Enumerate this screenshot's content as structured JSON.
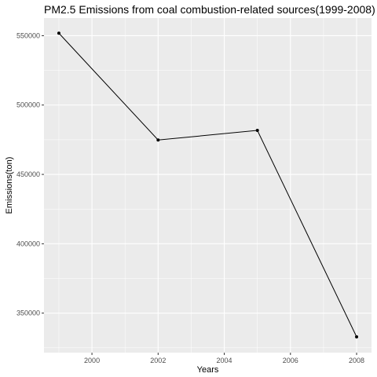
{
  "chart_data": {
    "type": "line",
    "title": "PM2.5 Emissions from coal combustion-related sources(1999-2008)",
    "xlabel": "Years",
    "ylabel": "Emissions(ton)",
    "x": [
      1999,
      2002,
      2005,
      2008
    ],
    "series": [
      {
        "values": [
          551800,
          474800,
          481700,
          332900
        ]
      }
    ],
    "xticks": [
      2000,
      2002,
      2004,
      2006,
      2008
    ],
    "yticks": [
      350000,
      400000,
      450000,
      500000,
      550000
    ],
    "xtick_labels": [
      "2000",
      "2002",
      "2004",
      "2006",
      "2008"
    ],
    "ytick_labels": [
      "350000",
      "400000",
      "450000",
      "500000",
      "550000"
    ],
    "xlim": [
      1998.55,
      2008.45
    ],
    "ylim": [
      321500,
      562700
    ],
    "grid": true,
    "colors": {
      "panel": "#ebebeb",
      "grid": "#ffffff",
      "line": "#000000",
      "tick_text": "#4d4d4d"
    }
  }
}
